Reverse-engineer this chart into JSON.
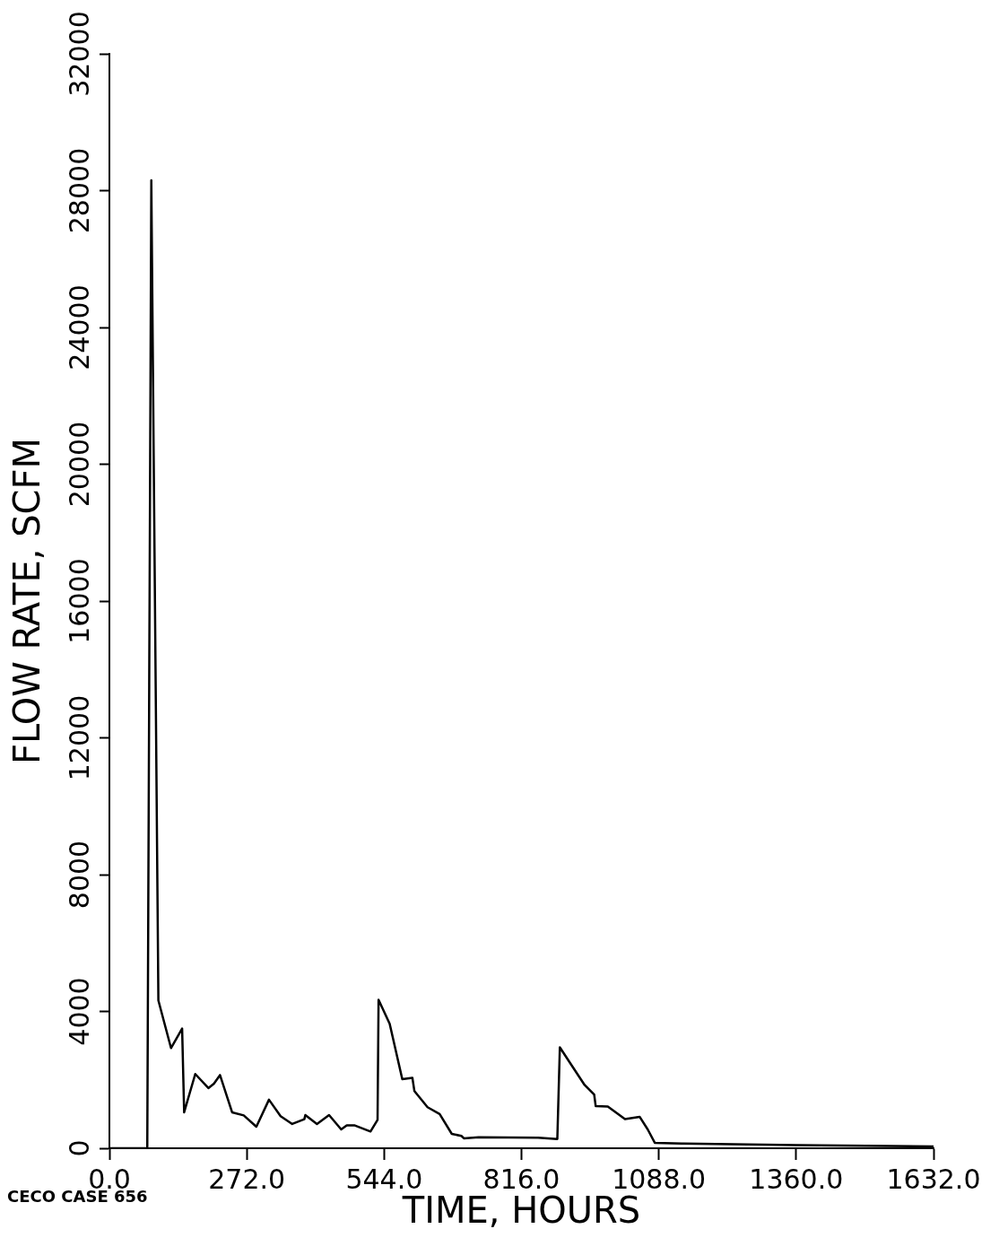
{
  "chart_data": {
    "type": "line",
    "xlabel": "TIME, HOURS",
    "ylabel": "FLOW RATE, SCFM",
    "annotations": [
      "CECO CASE 656"
    ],
    "x": [
      0,
      75,
      83,
      97,
      122,
      144,
      148,
      170,
      196,
      207,
      219,
      243,
      266,
      291,
      316,
      339,
      362,
      386,
      388,
      411,
      435,
      459,
      470,
      485,
      517,
      531,
      533,
      555,
      580,
      600,
      604,
      630,
      654,
      678,
      697,
      702,
      731,
      849,
      887,
      892,
      908,
      941,
      960,
      963,
      987,
      1021,
      1050,
      1066,
      1080,
      1133,
      1360,
      1632
    ],
    "values": [
      0,
      0,
      28300,
      4320,
      2930,
      3500,
      1050,
      2170,
      1760,
      1890,
      2140,
      1050,
      960,
      630,
      1420,
      940,
      710,
      850,
      970,
      710,
      970,
      550,
      670,
      670,
      490,
      830,
      4340,
      3640,
      2020,
      2060,
      1670,
      1200,
      1000,
      420,
      360,
      290,
      320,
      310,
      270,
      2950,
      2590,
      1850,
      1570,
      1230,
      1220,
      850,
      920,
      550,
      160,
      140,
      90,
      50
    ],
    "color": "#000000",
    "xlim": [
      0,
      1632
    ],
    "xticks": [
      {
        "value": 0,
        "label": "0.0"
      },
      {
        "value": 272,
        "label": "272.0"
      },
      {
        "value": 544,
        "label": "544.0"
      },
      {
        "value": 816,
        "label": "816.0"
      },
      {
        "value": 1088,
        "label": "1088.0"
      },
      {
        "value": 1360,
        "label": "1360.0"
      },
      {
        "value": 1632,
        "label": "1632.0"
      }
    ],
    "ylim": [
      0,
      32000
    ],
    "yticks": [
      0,
      4000,
      8000,
      12000,
      16000,
      20000,
      24000,
      28000,
      32000
    ]
  }
}
